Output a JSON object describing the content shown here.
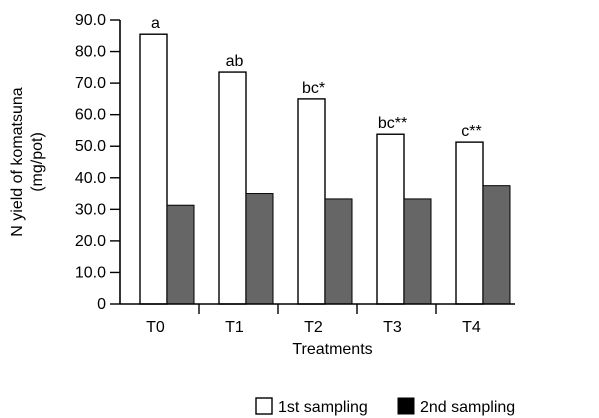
{
  "chart_data": {
    "type": "bar",
    "categories": [
      "T0",
      "T1",
      "T2",
      "T3",
      "T4"
    ],
    "series": [
      {
        "name": "1st sampling",
        "values": [
          85.5,
          73.5,
          65.0,
          53.8,
          51.3
        ],
        "color": "#ffffff"
      },
      {
        "name": "2nd sampling",
        "values": [
          31.3,
          35.0,
          33.3,
          33.3,
          37.5
        ],
        "color": "#666666"
      }
    ],
    "annotations": [
      "a",
      "ab",
      "bc*",
      "bc**",
      "c**"
    ],
    "xlabel": "Treatments",
    "ylabel": [
      "N yield of komatsuna",
      "(mg/pot)"
    ],
    "ylim": [
      0,
      90
    ],
    "yticks": [
      0,
      10,
      20,
      30,
      40,
      50,
      60,
      70,
      80,
      90
    ],
    "ytick_labels": [
      "0",
      "10.0",
      "20.0",
      "30.0",
      "40.0",
      "50.0",
      "60.0",
      "70.0",
      "80.0",
      "90.0"
    ],
    "grid": false,
    "legend_position": "bottom"
  }
}
